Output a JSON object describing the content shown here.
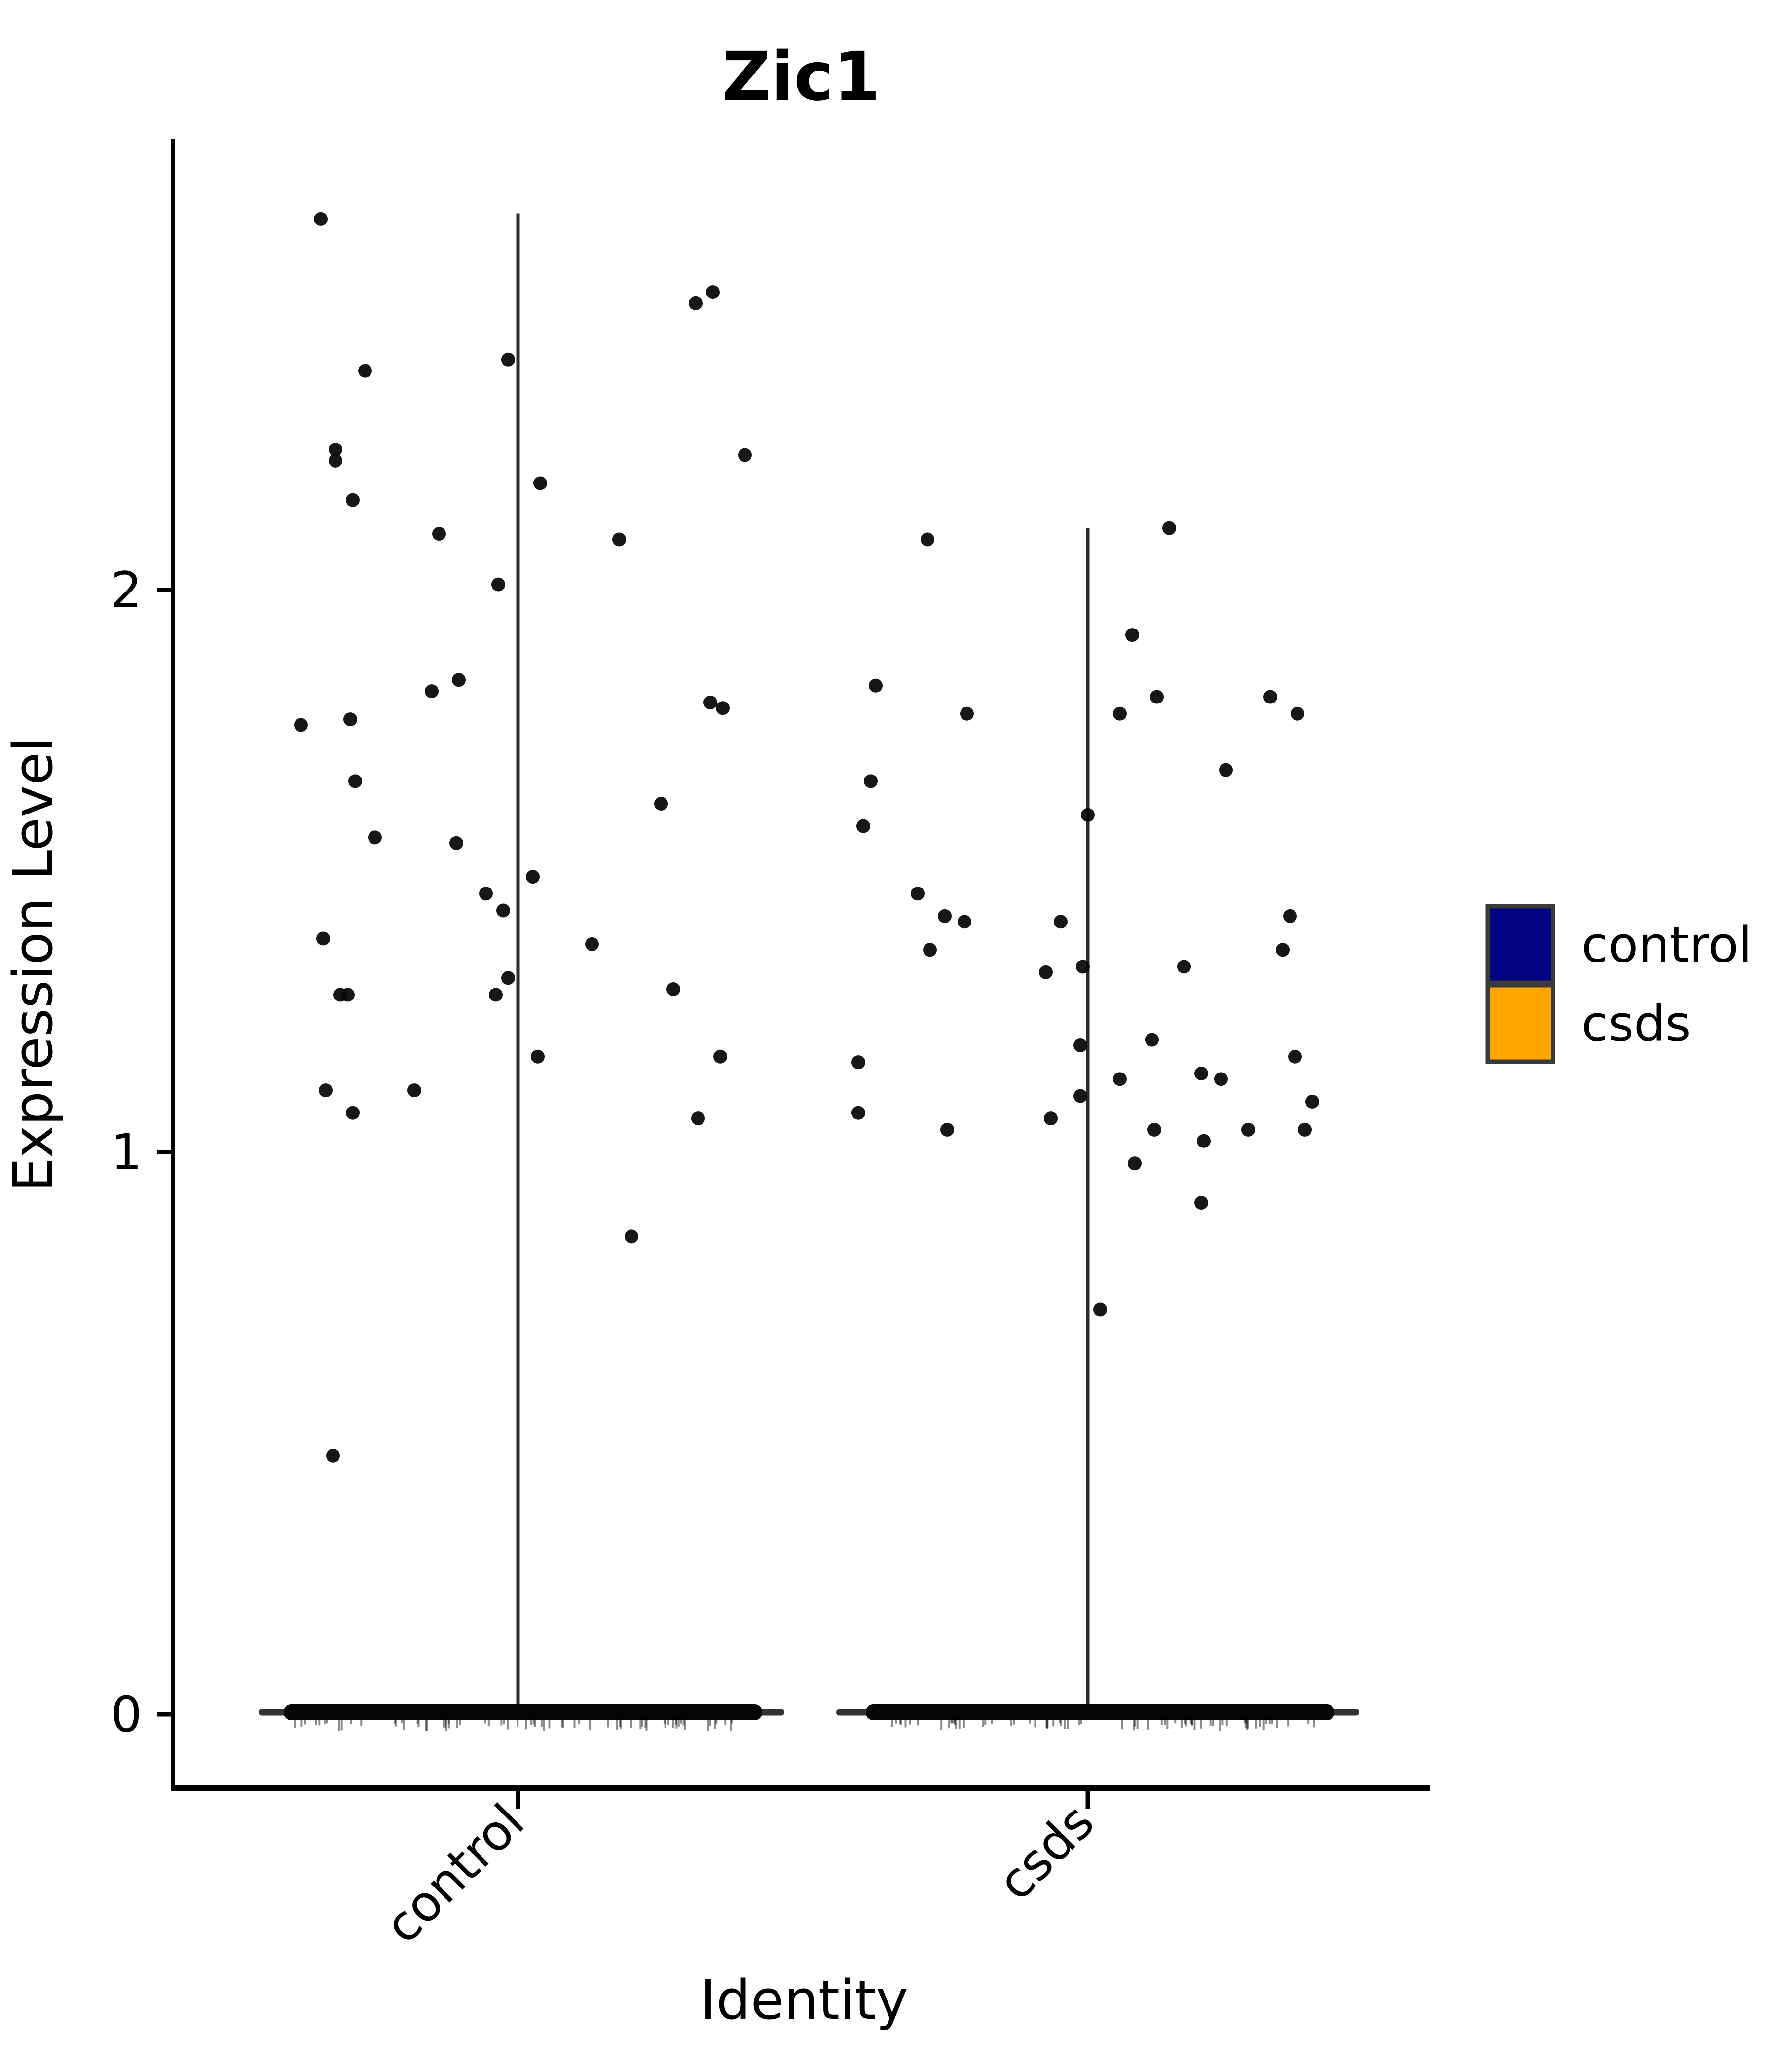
{
  "page": {
    "background": "#ffffff"
  },
  "chart_data": {
    "type": "scatter",
    "subtype": "violin-jitter-expression-plot",
    "title": "Zic1",
    "xlabel": "Identity",
    "ylabel": "Expression Level",
    "categories": [
      "control",
      "csds"
    ],
    "y_ticks": [
      0,
      1,
      2
    ],
    "y_tick_labels": [
      "0",
      "1",
      "2"
    ],
    "ylim": [
      -0.14,
      2.8
    ],
    "grid": "off",
    "point_color": "#0b0b0b",
    "violin_line_color": "#2b2b2b",
    "zero_band_color": "#050505",
    "axis_color": "#000000",
    "legend": {
      "position": "right",
      "entries": [
        {
          "label": "control",
          "color": "#020380",
          "border": "#3a3a3a"
        },
        {
          "label": "csds",
          "color": "#ffa500",
          "border": "#3a3a3a"
        }
      ]
    },
    "series": [
      {
        "name": "control",
        "color": "#020380",
        "violin_span": [
          0,
          2.67
        ],
        "zero_band_extent": [
          -0.95,
          0.99
        ],
        "violin_tail_extent": [
          -1.05,
          1.08
        ],
        "points": [
          [
            -0.8,
            2.66
          ],
          [
            0.72,
            2.51
          ],
          [
            0.79,
            2.53
          ],
          [
            -0.62,
            2.39
          ],
          [
            -0.04,
            2.41
          ],
          [
            -0.74,
            2.25
          ],
          [
            -0.74,
            2.23
          ],
          [
            -0.67,
            2.16
          ],
          [
            0.09,
            2.19
          ],
          [
            -0.32,
            2.1
          ],
          [
            0.41,
            2.09
          ],
          [
            -0.08,
            2.01
          ],
          [
            0.92,
            2.24
          ],
          [
            -0.24,
            1.84
          ],
          [
            -0.35,
            1.82
          ],
          [
            -0.68,
            1.77
          ],
          [
            -0.88,
            1.76
          ],
          [
            0.78,
            1.8
          ],
          [
            0.83,
            1.79
          ],
          [
            -0.66,
            1.66
          ],
          [
            0.58,
            1.62
          ],
          [
            -0.58,
            1.56
          ],
          [
            -0.25,
            1.55
          ],
          [
            0.06,
            1.49
          ],
          [
            -0.13,
            1.46
          ],
          [
            -0.06,
            1.43
          ],
          [
            -0.79,
            1.38
          ],
          [
            0.3,
            1.37
          ],
          [
            -0.04,
            1.31
          ],
          [
            -0.72,
            1.28
          ],
          [
            -0.69,
            1.28
          ],
          [
            0.63,
            1.29
          ],
          [
            -0.09,
            1.28
          ],
          [
            0.08,
            1.17
          ],
          [
            0.82,
            1.17
          ],
          [
            -0.78,
            1.11
          ],
          [
            -0.42,
            1.11
          ],
          [
            -0.67,
            1.07
          ],
          [
            0.73,
            1.06
          ],
          [
            0.46,
            0.85
          ],
          [
            -0.75,
            0.46
          ]
        ]
      },
      {
        "name": "csds",
        "color": "#ffa500",
        "violin_span": [
          0,
          2.11
        ],
        "zero_band_extent": [
          -0.9,
          1.0
        ],
        "violin_tail_extent": [
          -1.02,
          1.1
        ],
        "points": [
          [
            0.33,
            2.11
          ],
          [
            -0.65,
            2.09
          ],
          [
            0.18,
            1.92
          ],
          [
            -0.86,
            1.83
          ],
          [
            -0.49,
            1.78
          ],
          [
            0.28,
            1.81
          ],
          [
            0.13,
            1.78
          ],
          [
            0.74,
            1.81
          ],
          [
            0.85,
            1.78
          ],
          [
            0.56,
            1.68
          ],
          [
            -0.88,
            1.66
          ],
          [
            -0.91,
            1.58
          ],
          [
            0.0,
            1.6
          ],
          [
            -0.69,
            1.46
          ],
          [
            -0.58,
            1.42
          ],
          [
            -0.5,
            1.41
          ],
          [
            -0.11,
            1.41
          ],
          [
            -0.64,
            1.36
          ],
          [
            -0.17,
            1.32
          ],
          [
            -0.02,
            1.33
          ],
          [
            0.39,
            1.33
          ],
          [
            0.82,
            1.42
          ],
          [
            0.79,
            1.36
          ],
          [
            -0.93,
            1.16
          ],
          [
            -0.93,
            1.07
          ],
          [
            -0.57,
            1.04
          ],
          [
            -0.15,
            1.06
          ],
          [
            -0.03,
            1.19
          ],
          [
            -0.03,
            1.1
          ],
          [
            0.26,
            1.2
          ],
          [
            0.13,
            1.13
          ],
          [
            0.27,
            1.04
          ],
          [
            0.19,
            0.98
          ],
          [
            0.46,
            1.14
          ],
          [
            0.54,
            1.13
          ],
          [
            0.84,
            1.17
          ],
          [
            0.91,
            1.09
          ],
          [
            0.65,
            1.04
          ],
          [
            0.88,
            1.04
          ],
          [
            0.47,
            1.02
          ],
          [
            0.46,
            0.91
          ],
          [
            0.05,
            0.72
          ]
        ]
      }
    ]
  }
}
